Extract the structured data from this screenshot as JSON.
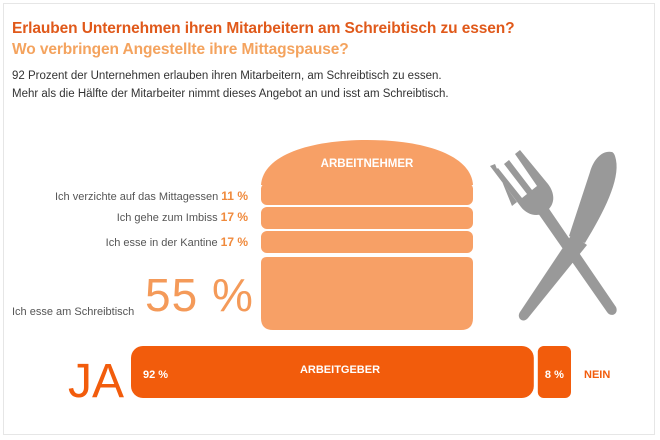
{
  "title": "Erlauben Unternehmen ihren Mitarbeitern am Schreibtisch zu essen?",
  "subtitle": "Wo verbringen Angestellte ihre Mittagspause?",
  "description_line1": "92 Prozent der Unternehmen erlauben ihren Mitarbeitern, am Schreibtisch zu essen.",
  "description_line2": "Mehr als die Hälfte der Mitarbeiter nimmt dieses Angebot an und isst am Schreibtisch.",
  "colors": {
    "dark_orange": "#f25c0c",
    "mid_orange": "#f7a066",
    "light_orange": "#f4a35e",
    "gray": "#999999"
  },
  "icons": [
    "burger-icon",
    "fork-knife-icon"
  ],
  "chart_data": [
    {
      "type": "bar",
      "title": "ARBEITNEHMER",
      "categories": [
        "Ich verzichte auf das  Mittagessen",
        "Ich gehe zum Imbiss",
        "Ich esse in der Kantine",
        "Ich esse am Schreibtisch"
      ],
      "values": [
        11,
        17,
        17,
        55
      ],
      "value_labels": [
        "11 %",
        "17 %",
        "17 %",
        "55 %"
      ],
      "unit": "%"
    },
    {
      "type": "bar",
      "title": "ARBEITGEBER",
      "categories": [
        "JA",
        "NEIN"
      ],
      "values": [
        92,
        8
      ],
      "value_labels": [
        "92 %",
        "8 %"
      ],
      "unit": "%"
    }
  ]
}
